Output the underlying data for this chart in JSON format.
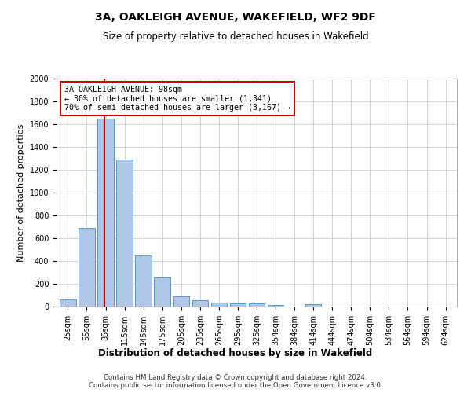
{
  "title": "3A, OAKLEIGH AVENUE, WAKEFIELD, WF2 9DF",
  "subtitle": "Size of property relative to detached houses in Wakefield",
  "xlabel": "Distribution of detached houses by size in Wakefield",
  "ylabel": "Number of detached properties",
  "bar_color": "#aec6e8",
  "bar_edge_color": "#5599cc",
  "categories": [
    "25sqm",
    "55sqm",
    "85sqm",
    "115sqm",
    "145sqm",
    "175sqm",
    "205sqm",
    "235sqm",
    "265sqm",
    "295sqm",
    "325sqm",
    "354sqm",
    "384sqm",
    "414sqm",
    "444sqm",
    "474sqm",
    "504sqm",
    "534sqm",
    "564sqm",
    "594sqm",
    "624sqm"
  ],
  "values": [
    65,
    690,
    1650,
    1290,
    445,
    255,
    90,
    55,
    35,
    25,
    25,
    15,
    0,
    20,
    0,
    0,
    0,
    0,
    0,
    0,
    0
  ],
  "ylim": [
    0,
    2000
  ],
  "yticks": [
    0,
    200,
    400,
    600,
    800,
    1000,
    1200,
    1400,
    1600,
    1800,
    2000
  ],
  "annotation_line1": "3A OAKLEIGH AVENUE: 98sqm",
  "annotation_line2": "← 30% of detached houses are smaller (1,341)",
  "annotation_line3": "70% of semi-detached houses are larger (3,167) →",
  "annotation_box_color": "#cc0000",
  "vline_color": "#cc0000",
  "grid_color": "#cccccc",
  "footer1": "Contains HM Land Registry data © Crown copyright and database right 2024.",
  "footer2": "Contains public sector information licensed under the Open Government Licence v3.0."
}
